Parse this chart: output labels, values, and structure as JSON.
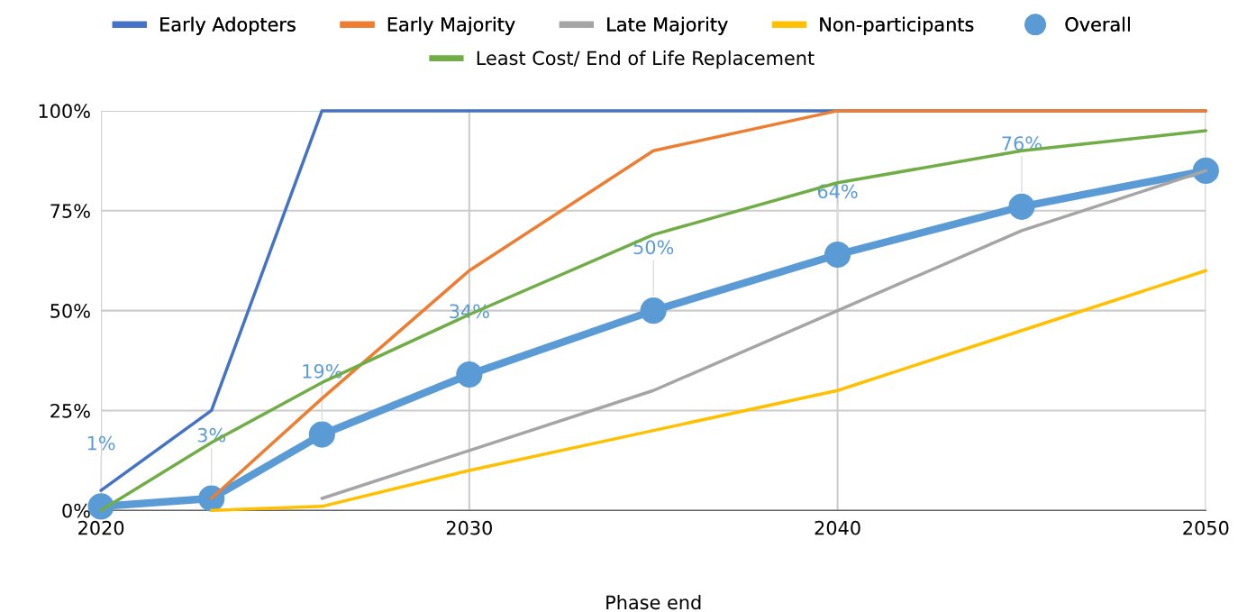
{
  "chart_data": {
    "type": "line",
    "xlabel": "Phase end",
    "x": [
      2020,
      2023,
      2026,
      2030,
      2035,
      2040,
      2045,
      2050
    ],
    "series": [
      {
        "name": "Early Adopters",
        "color": "#4472c4",
        "values": [
          5,
          25,
          100,
          100,
          100,
          100,
          100,
          100
        ]
      },
      {
        "name": "Early Majority",
        "color": "#ed7d31",
        "values": [
          null,
          3,
          28,
          60,
          90,
          100,
          100,
          100
        ]
      },
      {
        "name": "Late Majority",
        "color": "#a5a5a5",
        "values": [
          null,
          null,
          3,
          15,
          30,
          50,
          70,
          85
        ]
      },
      {
        "name": "Non-participants",
        "color": "#ffc000",
        "values": [
          null,
          0,
          1,
          10,
          20,
          30,
          45,
          60
        ]
      },
      {
        "name": "Overall",
        "color": "#5b9bd5",
        "marker": "circle",
        "values": [
          1,
          3,
          19,
          34,
          50,
          64,
          76,
          85
        ],
        "value_labels": [
          "1%",
          "3%",
          "19%",
          "34%",
          "50%",
          "64%",
          "76%",
          null
        ]
      },
      {
        "name": "Least Cost/ End of Life Replacement",
        "color": "#70ad47",
        "values": [
          0,
          17,
          32,
          49,
          69,
          82,
          90,
          95
        ]
      }
    ],
    "xlim": [
      2020,
      2050
    ],
    "xticks": [
      2020,
      2030,
      2040,
      2050
    ],
    "ylim": [
      0,
      100
    ],
    "yticks": [
      {
        "value": 0,
        "label": "0%"
      },
      {
        "value": 25,
        "label": "25%"
      },
      {
        "value": 50,
        "label": "50%"
      },
      {
        "value": 75,
        "label": "75%"
      },
      {
        "value": 100,
        "label": "100%"
      }
    ],
    "grid": true,
    "legend": "top",
    "line_style": "solid"
  }
}
